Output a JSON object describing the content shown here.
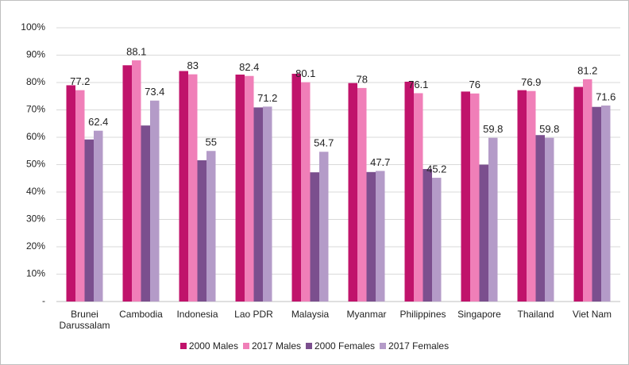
{
  "chart_data": {
    "type": "bar",
    "categories": [
      "Brunei Darussalam",
      "Cambodia",
      "Indonesia",
      "Lao PDR",
      "Malaysia",
      "Myanmar",
      "Philippines",
      "Singapore",
      "Thailand",
      "Viet Nam"
    ],
    "series": [
      {
        "name": "2000 Males",
        "color": "#c0136b",
        "show_values": false,
        "values": [
          79.0,
          86.3,
          84.2,
          82.9,
          83.2,
          79.8,
          80.3,
          76.7,
          77.2,
          78.4
        ]
      },
      {
        "name": "2017 Males",
        "color": "#f07fb8",
        "show_values": true,
        "values": [
          77.2,
          88.1,
          83.0,
          82.4,
          80.1,
          78.0,
          76.1,
          76.0,
          76.9,
          81.2
        ]
      },
      {
        "name": "2000 Females",
        "color": "#7b4f8e",
        "show_values": false,
        "values": [
          59.2,
          64.3,
          51.6,
          70.9,
          47.2,
          47.3,
          48.4,
          50.0,
          60.8,
          71.1
        ]
      },
      {
        "name": "2017 Females",
        "color": "#b49bc8",
        "show_values": true,
        "values": [
          62.4,
          73.4,
          55.0,
          71.2,
          54.7,
          47.7,
          45.2,
          59.8,
          59.8,
          71.6
        ]
      }
    ],
    "ylim": [
      0,
      100
    ],
    "yticks": [
      {
        "value": 0,
        "label": "-"
      },
      {
        "value": 10,
        "label": "10%"
      },
      {
        "value": 20,
        "label": "20%"
      },
      {
        "value": 30,
        "label": "30%"
      },
      {
        "value": 40,
        "label": "40%"
      },
      {
        "value": 50,
        "label": "50%"
      },
      {
        "value": 60,
        "label": "60%"
      },
      {
        "value": 70,
        "label": "70%"
      },
      {
        "value": 80,
        "label": "80%"
      },
      {
        "value": 90,
        "label": "90%"
      },
      {
        "value": 100,
        "label": "100%"
      }
    ],
    "grid": true,
    "legend": "bottom"
  }
}
